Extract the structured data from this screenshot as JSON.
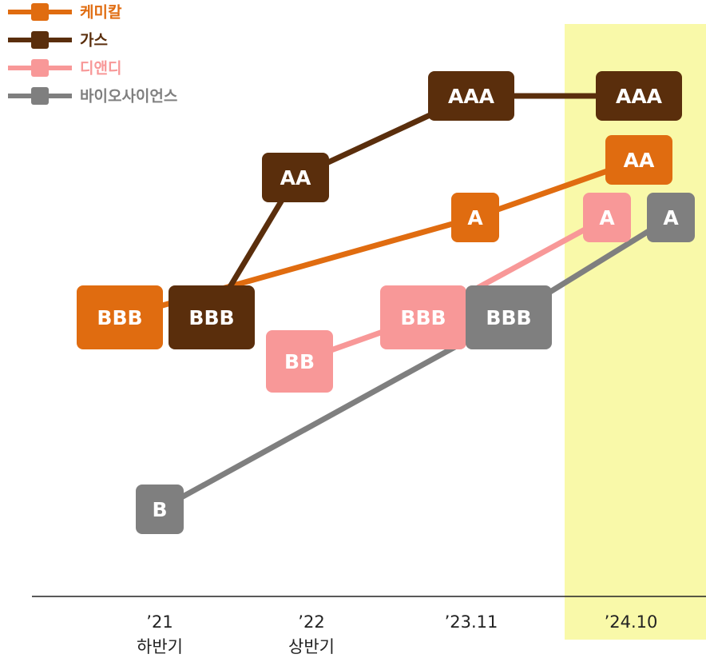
{
  "chart_data": {
    "type": "rating-line",
    "categories": [
      [
        "’21",
        "하반기"
      ],
      [
        "’22",
        "상반기"
      ],
      [
        "’23.11"
      ],
      [
        "’24.10"
      ]
    ],
    "levels": [
      "B",
      "BB",
      "BBB",
      "A",
      "AA",
      "AAA"
    ],
    "highlight_category": 3,
    "series": [
      {
        "name": "케미칼",
        "color": "#e06c10",
        "values": [
          "BBB",
          null,
          "A",
          "AA"
        ]
      },
      {
        "name": "가스",
        "color": "#5a2e0c",
        "values": [
          "BBB",
          "AA",
          "AAA",
          "AAA"
        ]
      },
      {
        "name": "디앤디",
        "color": "#f89898",
        "values": [
          null,
          "BB",
          "BBB",
          "A"
        ]
      },
      {
        "name": "바이오사이언스",
        "color": "#7f7f7f",
        "values": [
          "B",
          null,
          "BBB",
          "A"
        ]
      }
    ]
  }
}
